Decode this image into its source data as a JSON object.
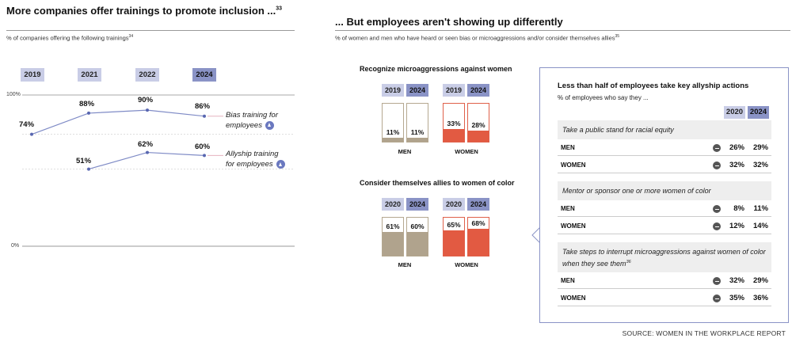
{
  "left": {
    "title": "More companies offer trainings to promote inclusion ...",
    "title_sup": "33",
    "subtitle": "% of companies offering the following trainings",
    "subtitle_sup": "34",
    "years": [
      "2019",
      "2021",
      "2022",
      "2024"
    ],
    "y_top_label": "100%",
    "y_bottom_label": "0%"
  },
  "chart_data": [
    {
      "type": "line",
      "title": "More companies offer trainings to promote inclusion ...",
      "x": [
        "2019",
        "2021",
        "2022",
        "2024"
      ],
      "ylim": [
        0,
        100
      ],
      "series": [
        {
          "name": "Bias training for employees",
          "values": [
            74,
            88,
            90,
            86
          ],
          "labels": [
            "74%",
            "88%",
            "90%",
            "86%"
          ]
        },
        {
          "name": "Allyship training for employees",
          "values": [
            null,
            51,
            62,
            60
          ],
          "labels": [
            "",
            "51%",
            "62%",
            "60%"
          ]
        }
      ],
      "series_label_lines": [
        [
          "Bias training for",
          "employees"
        ],
        [
          "Allyship training",
          "for employees"
        ]
      ],
      "colors": {
        "line": "#7f8bc6",
        "point": "#5866b0"
      }
    },
    {
      "type": "bar",
      "title": "Recognize microaggressions against women",
      "groups": [
        "MEN",
        "WOMEN"
      ],
      "categories": [
        "2019",
        "2024"
      ],
      "series": [
        {
          "name": "MEN",
          "values": [
            11,
            11
          ],
          "labels": [
            "11%",
            "11%"
          ]
        },
        {
          "name": "WOMEN",
          "values": [
            33,
            28
          ],
          "labels": [
            "33%",
            "28%"
          ]
        }
      ],
      "ylim": [
        0,
        100
      ]
    },
    {
      "type": "bar",
      "title": "Consider themselves allies to women of color",
      "groups": [
        "MEN",
        "WOMEN"
      ],
      "categories": [
        "2020",
        "2024"
      ],
      "series": [
        {
          "name": "MEN",
          "values": [
            61,
            60
          ],
          "labels": [
            "61%",
            "60%"
          ]
        },
        {
          "name": "WOMEN",
          "values": [
            65,
            68
          ],
          "labels": [
            "65%",
            "68%"
          ]
        }
      ],
      "ylim": [
        0,
        100
      ]
    },
    {
      "type": "table",
      "title": "Less than half of employees take key allyship actions",
      "subtitle": "% of employees who say they ...",
      "columns": [
        "2020",
        "2024"
      ],
      "sections": [
        {
          "label": "Take a public stand for racial equity",
          "sup": "",
          "rows": [
            {
              "label": "MEN",
              "values": [
                "26%",
                "29%"
              ]
            },
            {
              "label": "WOMEN",
              "values": [
                "32%",
                "32%"
              ]
            }
          ]
        },
        {
          "label": "Mentor or sponsor one or more women of color",
          "sup": "",
          "rows": [
            {
              "label": "MEN",
              "values": [
                "8%",
                "11%"
              ]
            },
            {
              "label": "WOMEN",
              "values": [
                "12%",
                "14%"
              ]
            }
          ]
        },
        {
          "label": "Take steps to interrupt microaggressions against women of color when they see them",
          "sup": "36",
          "rows": [
            {
              "label": "MEN",
              "values": [
                "32%",
                "29%"
              ]
            },
            {
              "label": "WOMEN",
              "values": [
                "35%",
                "36%"
              ]
            }
          ]
        }
      ]
    }
  ],
  "right": {
    "title": "... But employees aren't showing up differently",
    "subtitle": "% of women and men who have heard or seen bias or microaggressions and/or consider themselves allies",
    "subtitle_sup": "35",
    "men_label": "MEN",
    "women_label": "WOMEN"
  },
  "source": "SOURCE: WOMEN IN THE WORKPLACE REPORT",
  "colors": {
    "men": "#b0a38d",
    "women": "#e25a42",
    "year_light": "#c9cde6",
    "year_dark": "#8a93c6",
    "panel_border": "#8a93c6"
  }
}
